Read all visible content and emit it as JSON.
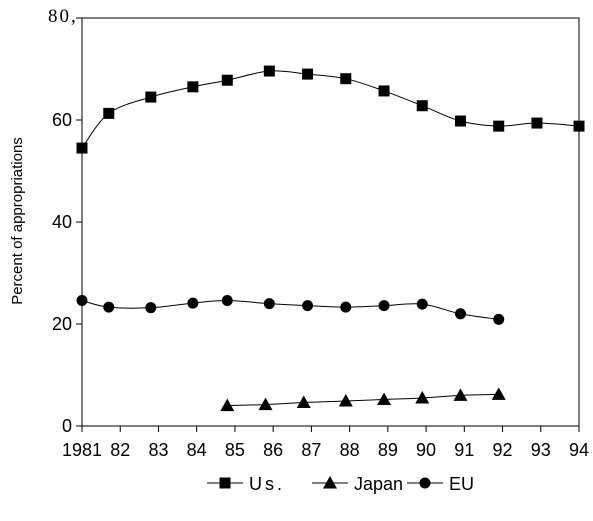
{
  "chart_data": {
    "type": "line",
    "title": "",
    "xlabel": "",
    "ylabel": "Percent of appropriations",
    "x_tick_labels": [
      "1981",
      "82",
      "83",
      "84",
      "85",
      "86",
      "87",
      "88",
      "89",
      "90",
      "91",
      "92",
      "93",
      "94"
    ],
    "y_tick_labels": [
      "0",
      "20",
      "40",
      "60"
    ],
    "y_top_label": "80,",
    "xlim": [
      1981,
      1994
    ],
    "ylim": [
      0,
      80
    ],
    "grid": false,
    "legend_position": "bottom",
    "series": [
      {
        "name": "Us.",
        "marker": "square",
        "x": [
          1981,
          1981.7,
          1982.8,
          1983.9,
          1984.8,
          1985.9,
          1986.9,
          1987.9,
          1988.9,
          1989.9,
          1990.9,
          1991.9,
          1992.9,
          1994
        ],
        "y": [
          54.5,
          61.3,
          64.5,
          66.5,
          67.8,
          69.6,
          69.0,
          68.1,
          65.7,
          62.8,
          59.8,
          58.8,
          59.4,
          58.8
        ]
      },
      {
        "name": "Japan",
        "marker": "triangle",
        "x": [
          1984.8,
          1985.8,
          1986.8,
          1987.9,
          1988.9,
          1989.9,
          1990.9,
          1991.9
        ],
        "y": [
          4.0,
          4.2,
          4.6,
          4.9,
          5.2,
          5.5,
          6.0,
          6.2
        ]
      },
      {
        "name": "EU",
        "marker": "circle",
        "x": [
          1981,
          1981.7,
          1982.8,
          1983.9,
          1984.8,
          1985.9,
          1986.9,
          1987.9,
          1988.9,
          1989.9,
          1990.9,
          1991.9
        ],
        "y": [
          24.6,
          23.3,
          23.2,
          24.1,
          24.6,
          24.0,
          23.6,
          23.3,
          23.6,
          23.9,
          22.0,
          20.9
        ]
      }
    ]
  }
}
